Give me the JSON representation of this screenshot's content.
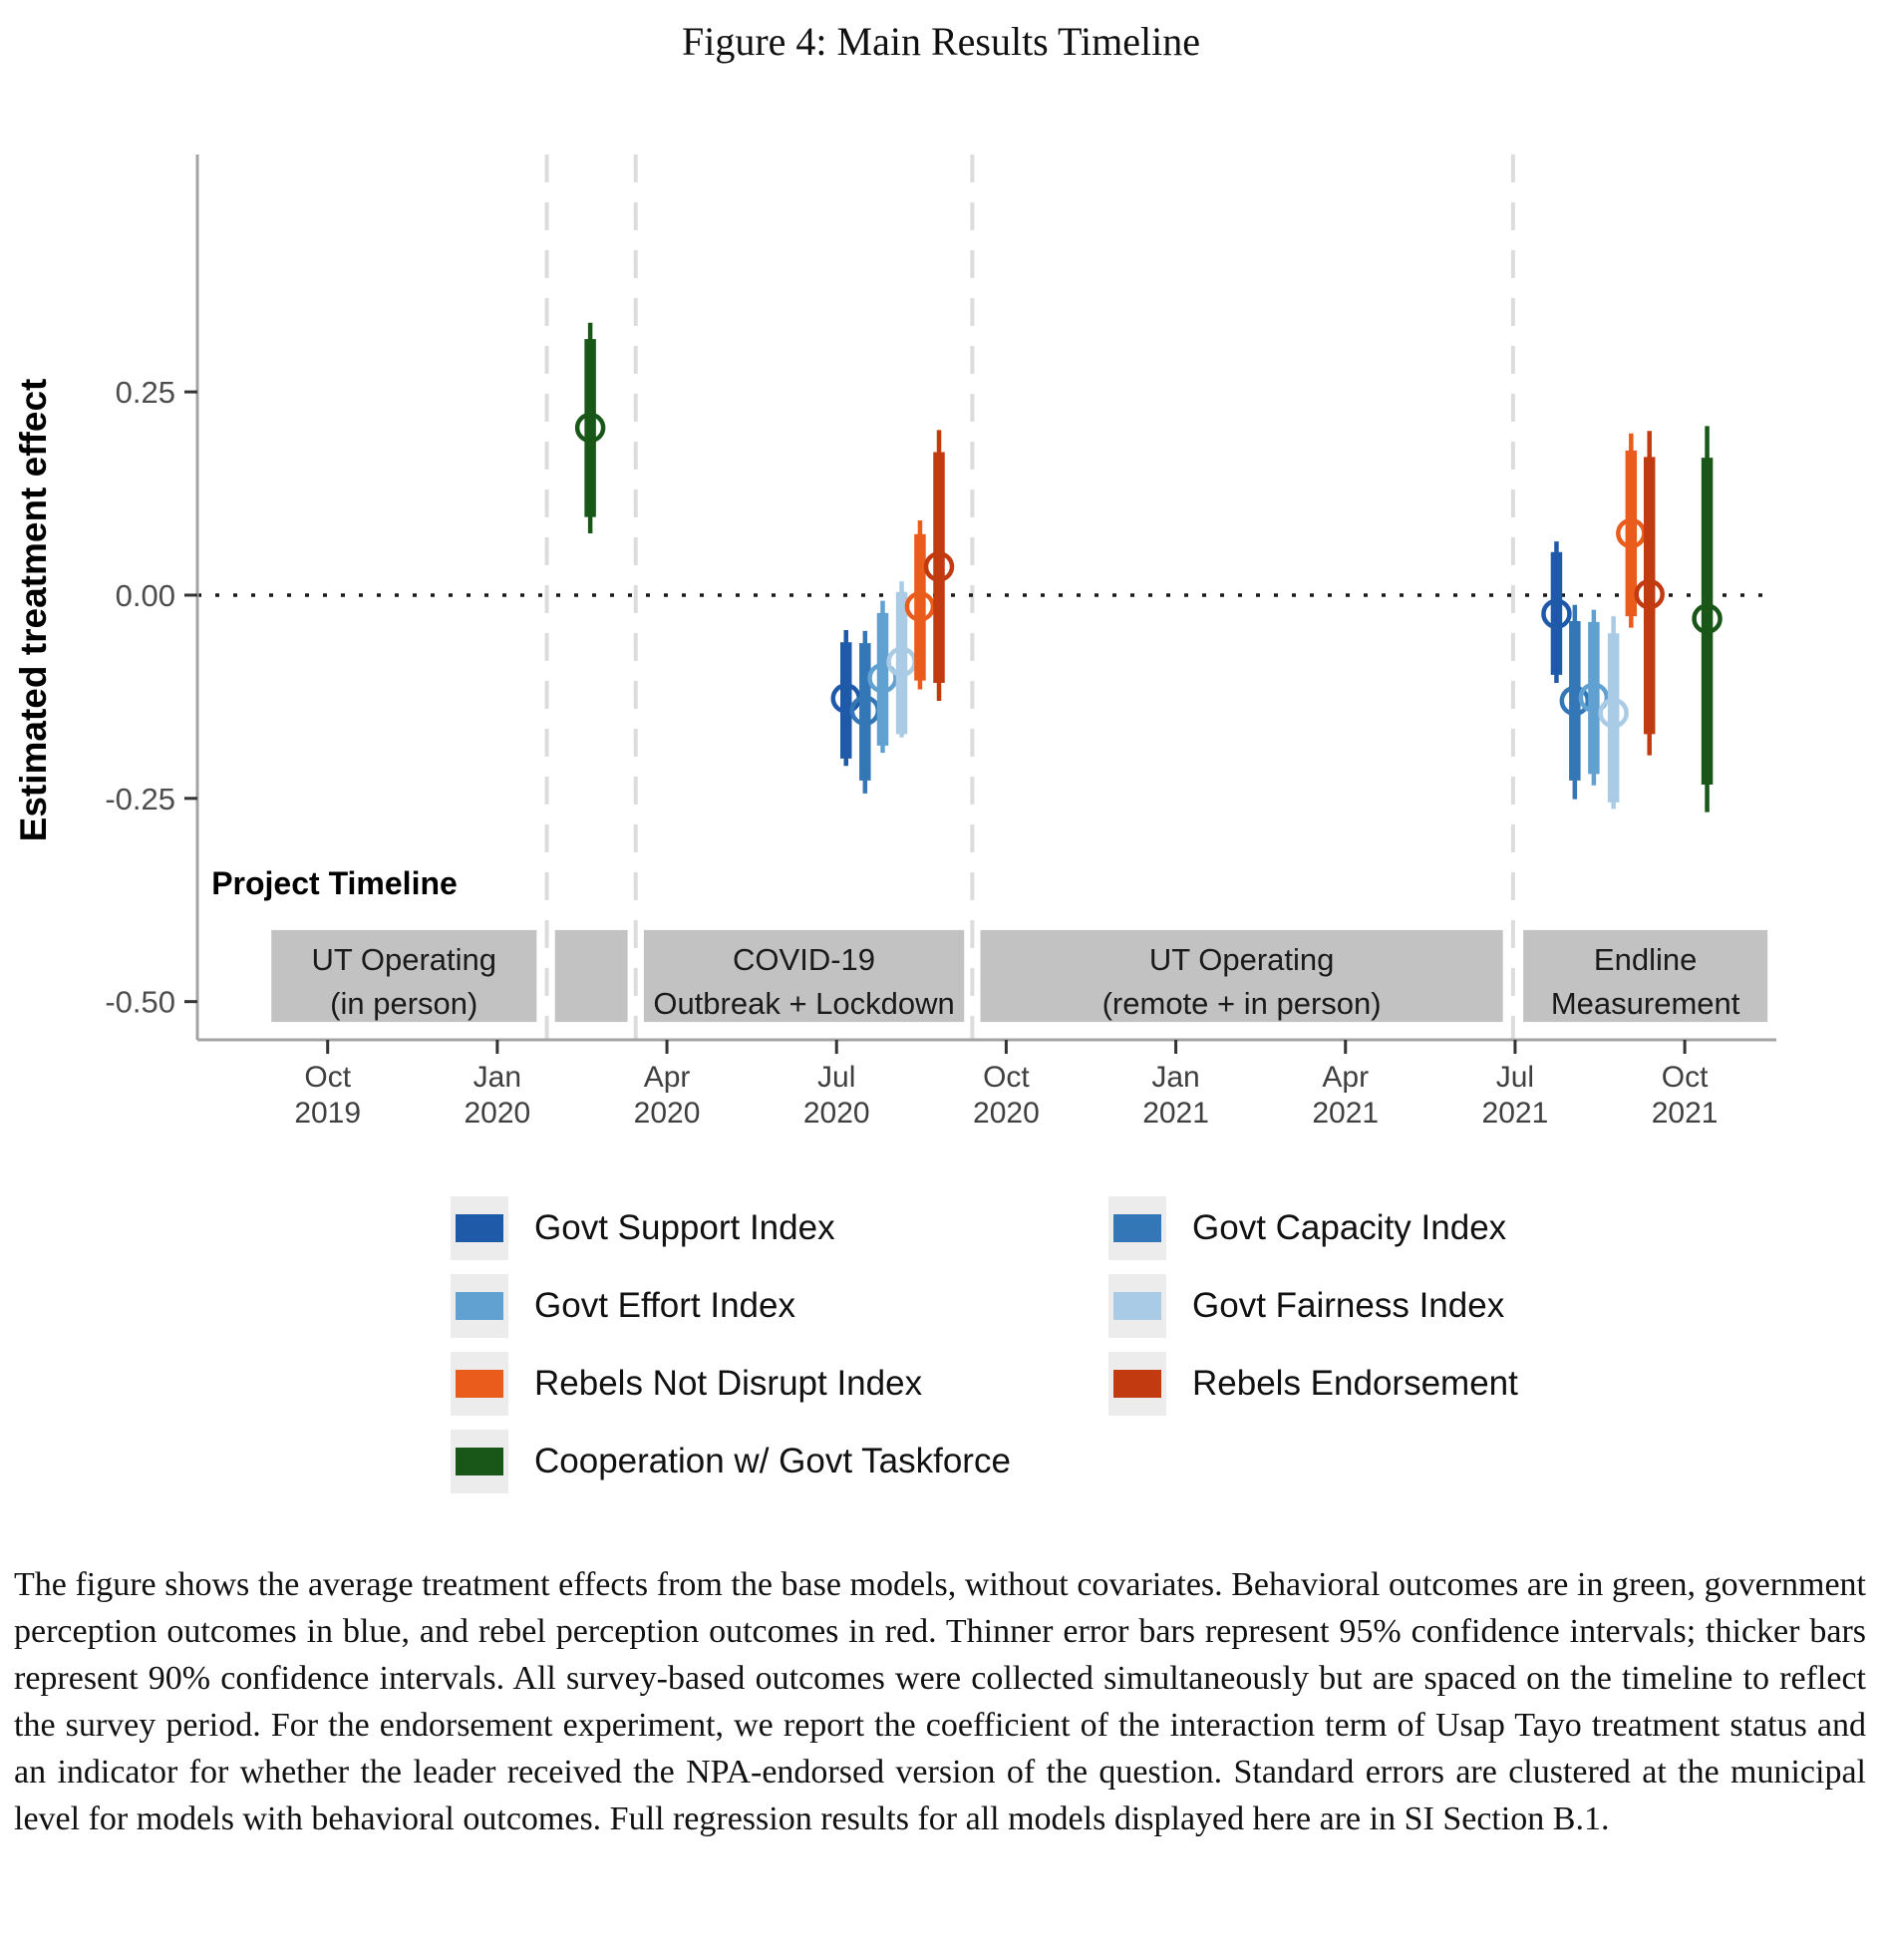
{
  "figure": {
    "title": "Figure 4: Main Results Timeline"
  },
  "chart_data": {
    "type": "errorbar",
    "title": "Figure 4: Main Results Timeline",
    "ylabel": "Estimated treatment effect",
    "ylim": [
      -0.547,
      0.542
    ],
    "yticks": [
      {
        "value": 0.25,
        "label": "0.25"
      },
      {
        "value": 0.0,
        "label": "0.00"
      },
      {
        "value": -0.25,
        "label": "-0.25"
      },
      {
        "value": -0.5,
        "label": "-0.50"
      }
    ],
    "x_domain": [
      2019.558,
      2021.885
    ],
    "xticks": [
      {
        "value": 2019.75,
        "month": "Oct",
        "year": "2019"
      },
      {
        "value": 2020.0,
        "month": "Jan",
        "year": "2020"
      },
      {
        "value": 2020.25,
        "month": "Apr",
        "year": "2020"
      },
      {
        "value": 2020.5,
        "month": "Jul",
        "year": "2020"
      },
      {
        "value": 2020.75,
        "month": "Oct",
        "year": "2020"
      },
      {
        "value": 2021.0,
        "month": "Jan",
        "year": "2021"
      },
      {
        "value": 2021.25,
        "month": "Apr",
        "year": "2021"
      },
      {
        "value": 2021.5,
        "month": "Jul",
        "year": "2021"
      },
      {
        "value": 2021.75,
        "month": "Oct",
        "year": "2021"
      }
    ],
    "zero_line_value": 0,
    "dashed_vlines": [
      2020.073,
      2020.204,
      2020.7,
      2021.497
    ],
    "grid": false,
    "legend_position": "bottom",
    "ci_levels": {
      "thick_bar": "90% confidence interval",
      "thin_bar": "95% confidence interval"
    },
    "series": [
      {
        "name": "Govt Support Index",
        "color": "#1f5aa8",
        "points": [
          {
            "x": 2020.514,
            "est": -0.127,
            "lo90": -0.201,
            "hi90": -0.058,
            "lo95": -0.21,
            "hi95": -0.043
          },
          {
            "x": 2021.561,
            "est": -0.023,
            "lo90": -0.098,
            "hi90": 0.053,
            "lo95": -0.108,
            "hi95": 0.066
          }
        ]
      },
      {
        "name": "Govt Capacity Index",
        "color": "#3377b6",
        "points": [
          {
            "x": 2020.542,
            "est": -0.142,
            "lo90": -0.228,
            "hi90": -0.059,
            "lo95": -0.244,
            "hi95": -0.044
          },
          {
            "x": 2021.588,
            "est": -0.13,
            "lo90": -0.228,
            "hi90": -0.032,
            "lo95": -0.251,
            "hi95": -0.012
          }
        ]
      },
      {
        "name": "Govt Effort Index",
        "color": "#61a1d1",
        "points": [
          {
            "x": 2020.568,
            "est": -0.102,
            "lo90": -0.185,
            "hi90": -0.022,
            "lo95": -0.194,
            "hi95": -0.007
          },
          {
            "x": 2021.616,
            "est": -0.126,
            "lo90": -0.22,
            "hi90": -0.033,
            "lo95": -0.234,
            "hi95": -0.018
          }
        ]
      },
      {
        "name": "Govt Fairness Index",
        "color": "#a9cbe5",
        "points": [
          {
            "x": 2020.596,
            "est": -0.082,
            "lo90": -0.171,
            "hi90": 0.004,
            "lo95": -0.175,
            "hi95": 0.017
          },
          {
            "x": 2021.645,
            "est": -0.145,
            "lo90": -0.255,
            "hi90": -0.047,
            "lo95": -0.263,
            "hi95": -0.026
          }
        ]
      },
      {
        "name": "Rebels Not Disrupt Index",
        "color": "#e95c1c",
        "points": [
          {
            "x": 2020.623,
            "est": -0.014,
            "lo90": -0.105,
            "hi90": 0.075,
            "lo95": -0.116,
            "hi95": 0.092
          },
          {
            "x": 2021.671,
            "est": 0.076,
            "lo90": -0.026,
            "hi90": 0.178,
            "lo95": -0.04,
            "hi95": 0.199
          }
        ]
      },
      {
        "name": "Rebels Endorsement",
        "color": "#c13a10",
        "points": [
          {
            "x": 2020.651,
            "est": 0.035,
            "lo90": -0.108,
            "hi90": 0.176,
            "lo95": -0.13,
            "hi95": 0.203
          },
          {
            "x": 2021.698,
            "est": 0.001,
            "lo90": -0.171,
            "hi90": 0.17,
            "lo95": -0.197,
            "hi95": 0.202
          }
        ]
      },
      {
        "name": "Cooperation w/ Govt Taskforce",
        "color": "#185718",
        "points": [
          {
            "x": 2020.137,
            "est": 0.206,
            "lo90": 0.096,
            "hi90": 0.315,
            "lo95": 0.076,
            "hi95": 0.335
          },
          {
            "x": 2021.783,
            "est": -0.029,
            "lo90": -0.233,
            "hi90": 0.169,
            "lo95": -0.267,
            "hi95": 0.208
          }
        ]
      }
    ],
    "timeline": {
      "header": "Project Timeline",
      "band_color": "#c2c2c2",
      "band_value_top": -0.412,
      "band_value_bottom": -0.525,
      "segments": [
        {
          "x0": 2019.667,
          "x1": 2020.058,
          "lines": [
            "UT Operating",
            "(in person)"
          ]
        },
        {
          "x0": 2020.085,
          "x1": 2020.192,
          "lines": []
        },
        {
          "x0": 2020.216,
          "x1": 2020.688,
          "lines": [
            "COVID-19",
            "Outbreak + Lockdown"
          ]
        },
        {
          "x0": 2020.712,
          "x1": 2021.482,
          "lines": [
            "UT Operating",
            "(remote + in person)"
          ]
        },
        {
          "x0": 2021.512,
          "x1": 2021.872,
          "lines": [
            "Endline",
            "Measurement"
          ]
        }
      ]
    },
    "colors": {
      "axis_line": "#a3a3a3",
      "tick_mark": "#333333",
      "tick_label": "#4d4d4d",
      "dashed_vline": "#dcdcdc",
      "zero_dotted_line": "#1a1a1a",
      "band_fill": "#c2c2c2",
      "band_text": "#1a1a1a"
    }
  },
  "legend": {
    "items": [
      {
        "label": "Govt Support Index",
        "color": "#1f5aa8"
      },
      {
        "label": "Govt Capacity Index",
        "color": "#3377b6"
      },
      {
        "label": "Govt Effort Index",
        "color": "#61a1d1"
      },
      {
        "label": "Govt Fairness Index",
        "color": "#a9cbe5"
      },
      {
        "label": "Rebels Not Disrupt Index",
        "color": "#e95c1c"
      },
      {
        "label": "Rebels Endorsement",
        "color": "#c13a10"
      },
      {
        "label": "Cooperation w/ Govt Taskforce",
        "color": "#185718"
      }
    ]
  },
  "caption": "The figure shows the average treatment effects from the base models, without covariates. Behavioral outcomes are in green, government perception outcomes in blue, and rebel perception outcomes in red. Thinner error bars represent 95% confidence intervals; thicker bars represent 90% confidence intervals. All survey-based outcomes were collected simultaneously but are spaced on the timeline to reflect the survey period. For the endorsement experiment, we report the coefficient of the interaction term of Usap Tayo treatment status and an indicator for whether the leader received the NPA-endorsed version of the question. Standard errors are clustered at the municipal level for models with behavioral outcomes. Full regression results for all models displayed here are in SI Section B.1."
}
